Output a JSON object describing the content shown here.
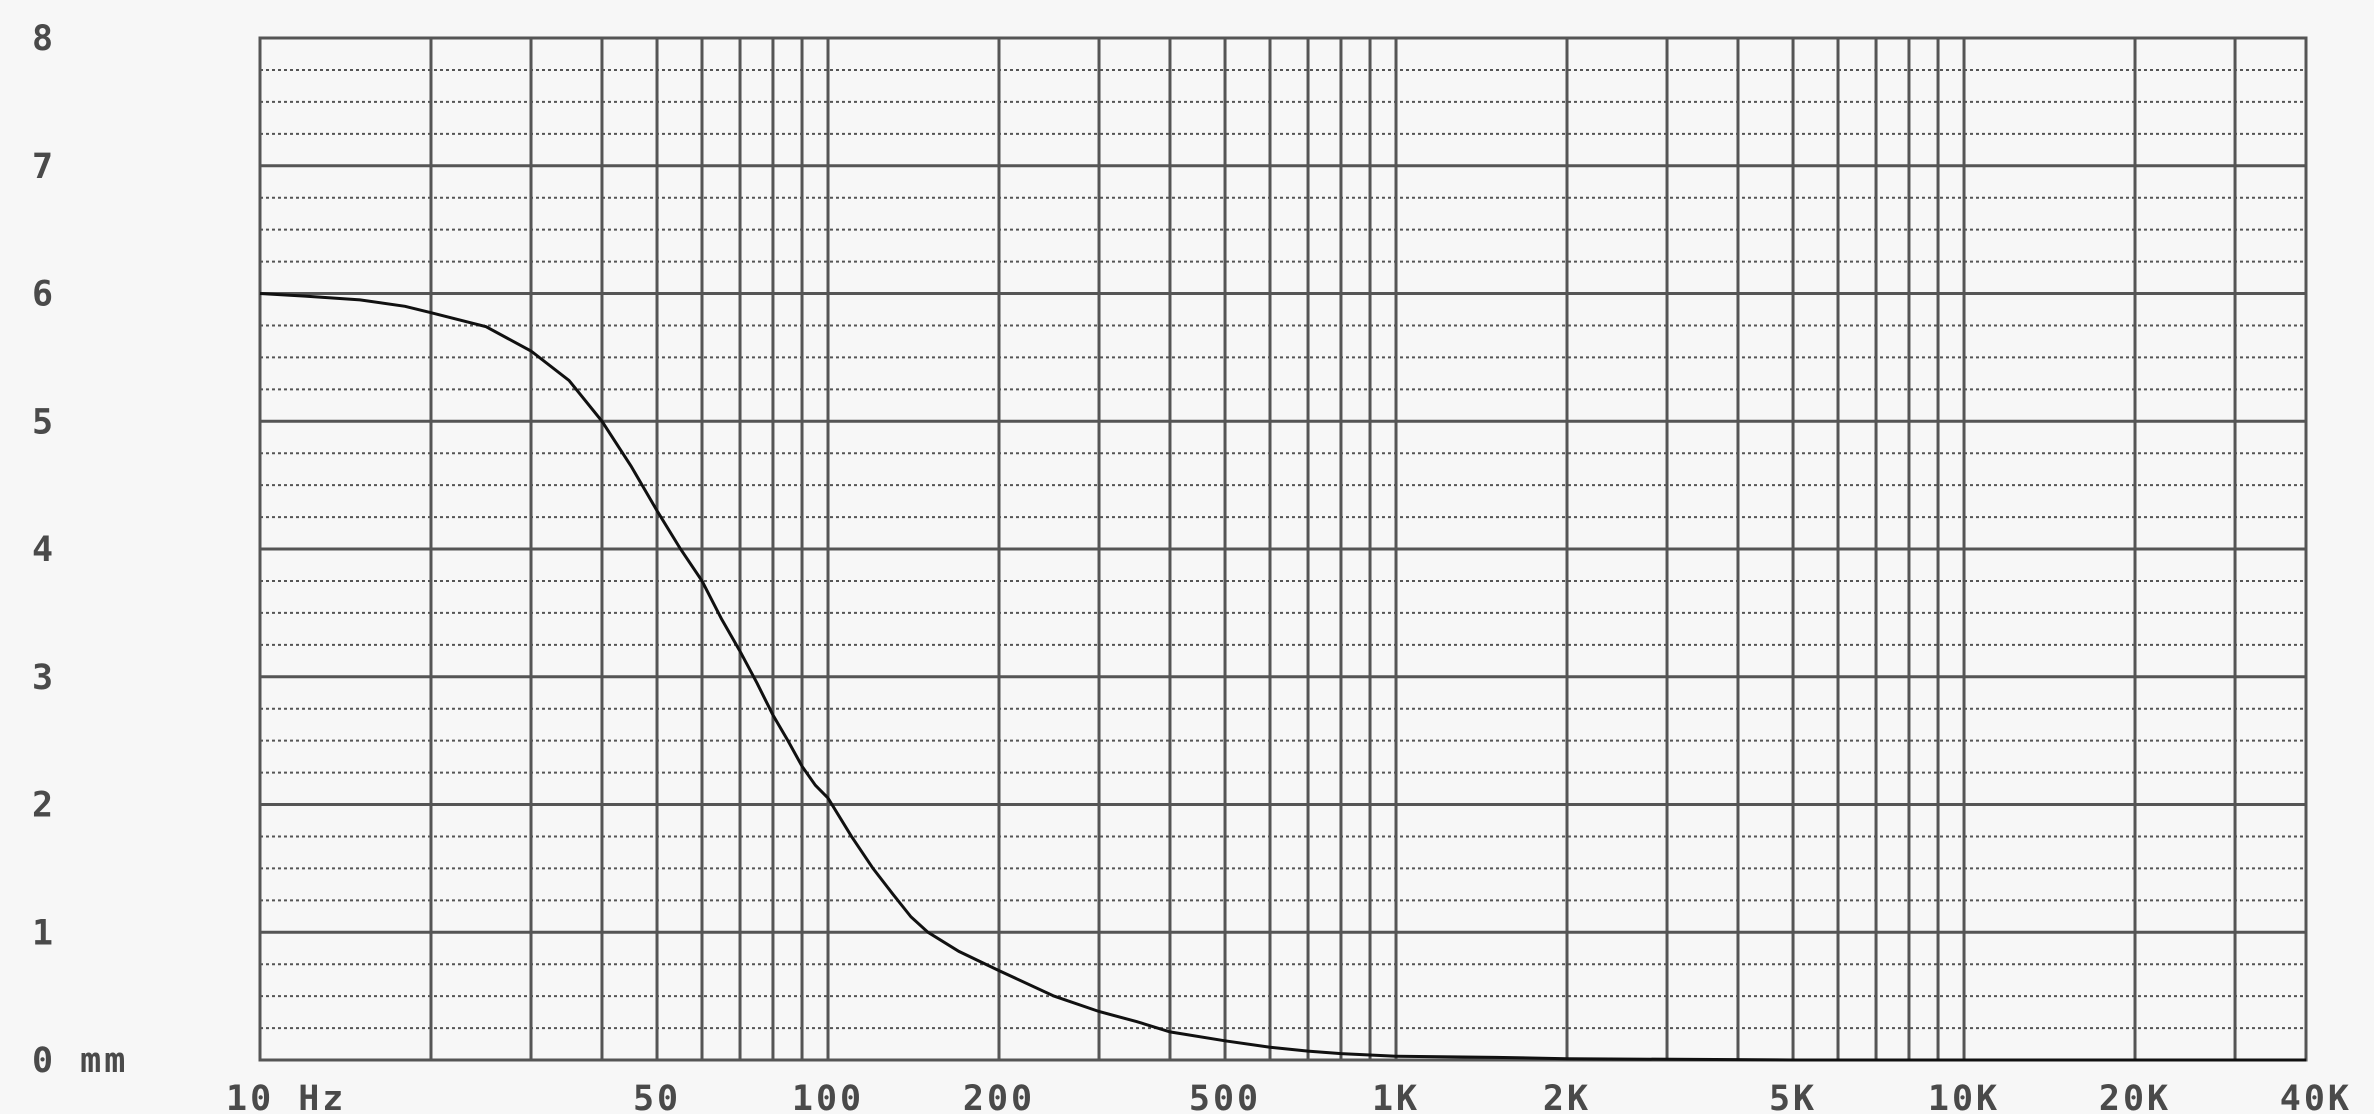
{
  "chart_data": {
    "type": "line",
    "title": "",
    "xlabel": "",
    "ylabel": "",
    "x_scale": "log",
    "xlim": [
      10,
      40000
    ],
    "ylim": [
      0,
      8
    ],
    "grid": true,
    "x_tick_labels": [
      {
        "value": 10,
        "label": "10 Hz"
      },
      {
        "value": 50,
        "label": "50"
      },
      {
        "value": 100,
        "label": "100"
      },
      {
        "value": 200,
        "label": "200"
      },
      {
        "value": 500,
        "label": "500"
      },
      {
        "value": 1000,
        "label": "1K"
      },
      {
        "value": 2000,
        "label": "2K"
      },
      {
        "value": 5000,
        "label": "5K"
      },
      {
        "value": 10000,
        "label": "10K"
      },
      {
        "value": 20000,
        "label": "20K"
      },
      {
        "value": 40000,
        "label": "40K"
      }
    ],
    "x_gridlines": [
      10,
      20,
      30,
      40,
      50,
      60,
      70,
      80,
      90,
      100,
      200,
      300,
      400,
      500,
      600,
      700,
      800,
      900,
      1000,
      2000,
      3000,
      4000,
      5000,
      6000,
      7000,
      8000,
      9000,
      10000,
      20000,
      30000,
      40000
    ],
    "y_tick_labels": [
      {
        "value": 0,
        "label": "0 mm"
      },
      {
        "value": 1,
        "label": "1"
      },
      {
        "value": 2,
        "label": "2"
      },
      {
        "value": 3,
        "label": "3"
      },
      {
        "value": 4,
        "label": "4"
      },
      {
        "value": 5,
        "label": "5"
      },
      {
        "value": 6,
        "label": "6"
      },
      {
        "value": 7,
        "label": "7"
      },
      {
        "value": 8,
        "label": "8"
      }
    ],
    "y_minor_step": 0.25,
    "series": [
      {
        "color": "#111111",
        "x": [
          10,
          12,
          15,
          18,
          20,
          25,
          30,
          35,
          40,
          45,
          50,
          55,
          60,
          65,
          70,
          75,
          80,
          85,
          90,
          95,
          100,
          110,
          120,
          130,
          140,
          150,
          170,
          200,
          250,
          300,
          350,
          400,
          500,
          600,
          700,
          800,
          1000,
          1500,
          2000,
          5000,
          10000,
          40000
        ],
        "y": [
          6.0,
          5.98,
          5.95,
          5.9,
          5.85,
          5.74,
          5.55,
          5.32,
          5.0,
          4.65,
          4.3,
          4.0,
          3.75,
          3.45,
          3.2,
          2.95,
          2.7,
          2.5,
          2.3,
          2.15,
          2.05,
          1.75,
          1.5,
          1.3,
          1.12,
          1.0,
          0.85,
          0.7,
          0.5,
          0.38,
          0.3,
          0.22,
          0.15,
          0.1,
          0.07,
          0.05,
          0.03,
          0.02,
          0.01,
          0.0,
          0.0,
          0.0
        ]
      }
    ]
  }
}
